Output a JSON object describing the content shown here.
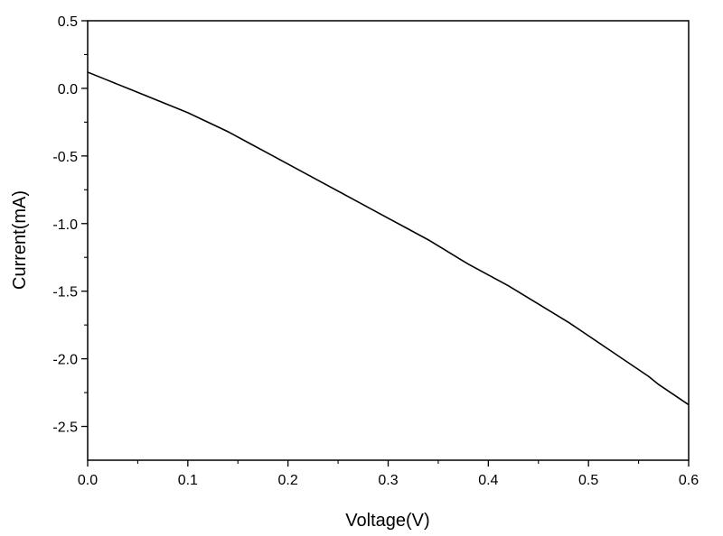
{
  "chart_data": {
    "type": "line",
    "title": "",
    "xlabel": "Voltage(V)",
    "ylabel": "Current(mA)",
    "xlim": [
      0.0,
      0.6
    ],
    "ylim": [
      -2.75,
      0.5
    ],
    "x_ticks": [
      0.0,
      0.1,
      0.2,
      0.3,
      0.4,
      0.5,
      0.6
    ],
    "x_tick_labels": [
      "0.0",
      "0.1",
      "0.2",
      "0.3",
      "0.4",
      "0.5",
      "0.6"
    ],
    "y_ticks": [
      0.5,
      0.0,
      -0.5,
      -1.0,
      -1.5,
      -2.0,
      -2.5
    ],
    "y_tick_labels": [
      "0.5",
      "0.0",
      "-0.5",
      "-1.0",
      "-1.5",
      "-2.0",
      "-2.5"
    ],
    "grid": false,
    "legend": "none",
    "line_color": "#000000",
    "series": [
      {
        "x": [
          0.0,
          0.01,
          0.02,
          0.03,
          0.04,
          0.05,
          0.06,
          0.07,
          0.08,
          0.09,
          0.1,
          0.12,
          0.14,
          0.16,
          0.18,
          0.2,
          0.22,
          0.24,
          0.26,
          0.28,
          0.3,
          0.32,
          0.34,
          0.36,
          0.38,
          0.4,
          0.42,
          0.44,
          0.46,
          0.48,
          0.5,
          0.52,
          0.54,
          0.56,
          0.57,
          0.58,
          0.59,
          0.6
        ],
        "y": [
          0.12,
          0.09,
          0.06,
          0.03,
          0.0,
          -0.03,
          -0.06,
          -0.09,
          -0.12,
          -0.15,
          -0.18,
          -0.25,
          -0.32,
          -0.4,
          -0.48,
          -0.56,
          -0.64,
          -0.72,
          -0.8,
          -0.88,
          -0.96,
          -1.04,
          -1.12,
          -1.21,
          -1.3,
          -1.38,
          -1.46,
          -1.55,
          -1.64,
          -1.73,
          -1.83,
          -1.93,
          -2.03,
          -2.13,
          -2.19,
          -2.24,
          -2.29,
          -2.34
        ]
      }
    ]
  }
}
